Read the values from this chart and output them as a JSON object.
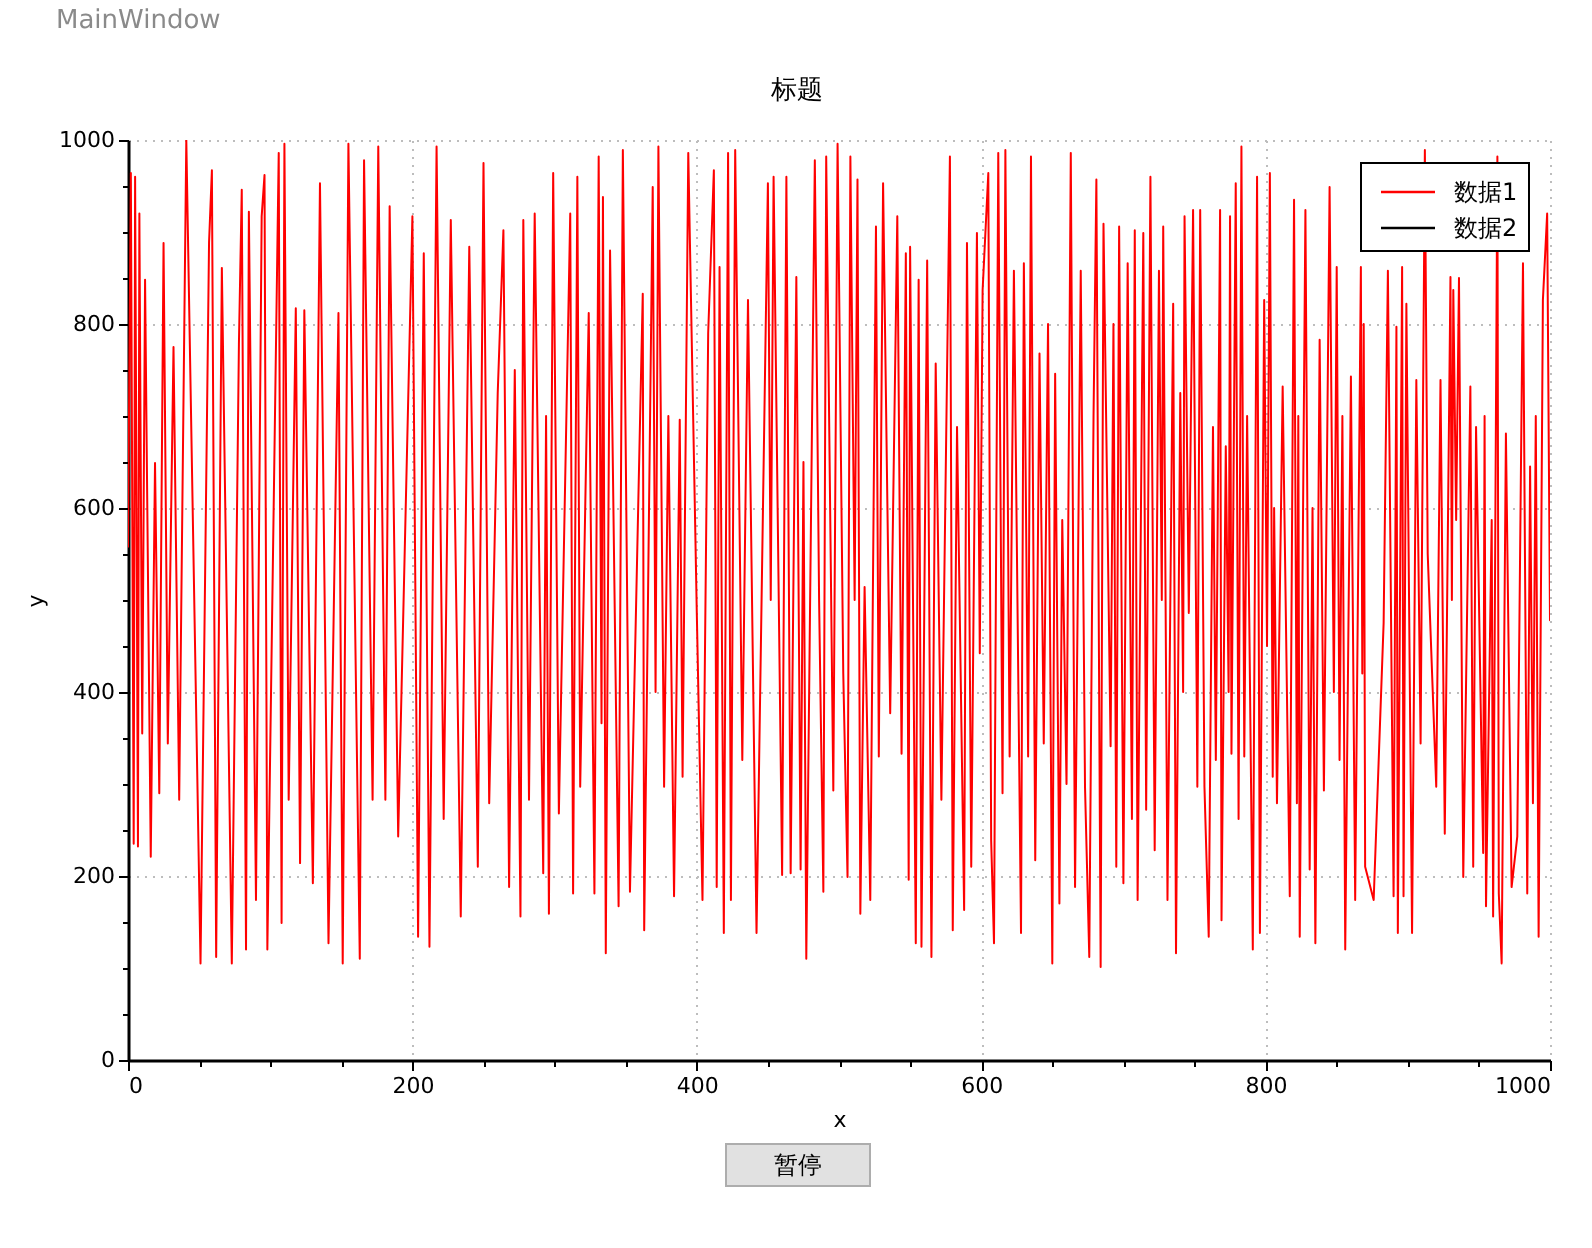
{
  "chart_data": {
    "type": "line",
    "title": "标题",
    "xlabel": "x",
    "ylabel": "y",
    "annotations": [
      "MainWindow",
      "暂停"
    ],
    "xlim": [
      0,
      1000
    ],
    "ylim": [
      0,
      1000
    ],
    "xticks": [
      0,
      {
        "value": 50,
        "label": null
      },
      {
        "value": 100,
        "label": null
      },
      {
        "value": 150,
        "label": null
      },
      200,
      {
        "value": 250,
        "label": null
      },
      {
        "value": 300,
        "label": null
      },
      {
        "value": 350,
        "label": null
      },
      400,
      {
        "value": 450,
        "label": null
      },
      {
        "value": 500,
        "label": null
      },
      {
        "value": 550,
        "label": null
      },
      600,
      {
        "value": 650,
        "label": null
      },
      {
        "value": 700,
        "label": null
      },
      {
        "value": 750,
        "label": null
      },
      800,
      {
        "value": 850,
        "label": null
      },
      {
        "value": 900,
        "label": null
      },
      {
        "value": 950,
        "label": null
      },
      1000
    ],
    "yticks": [
      0,
      {
        "value": 50,
        "label": null
      },
      {
        "value": 100,
        "label": null
      },
      {
        "value": 150,
        "label": null
      },
      200,
      {
        "value": 250,
        "label": null
      },
      {
        "value": 300,
        "label": null
      },
      {
        "value": 350,
        "label": null
      },
      400,
      {
        "value": 450,
        "label": null
      },
      {
        "value": 500,
        "label": null
      },
      {
        "value": 550,
        "label": null
      },
      600,
      {
        "value": 650,
        "label": null
      },
      {
        "value": 700,
        "label": null
      },
      {
        "value": 750,
        "label": null
      },
      800,
      {
        "value": 850,
        "label": null
      },
      {
        "value": 900,
        "label": null
      },
      {
        "value": 950,
        "label": null
      },
      1000
    ],
    "grid": true,
    "legend": "top right",
    "series": [
      {
        "name": "数据1",
        "color": "#ff0000",
        "x": [
          0,
          2,
          4,
          5,
          7,
          8,
          10,
          12,
          16,
          19,
          22,
          25,
          28,
          32,
          36,
          41,
          51,
          57,
          59,
          62,
          66,
          73,
          78,
          80,
          83,
          85,
          90,
          94,
          96,
          98,
          106,
          108,
          110,
          113,
          118,
          121,
          124,
          130,
          135,
          141,
          148,
          151,
          155,
          163,
          166,
          172,
          176,
          181,
          184,
          190,
          200,
          204,
          208,
          212,
          217,
          222,
          227,
          234,
          240,
          246,
          250,
          254,
          260,
          264,
          268,
          272,
          276,
          278,
          282,
          286,
          292,
          294,
          296,
          299,
          303,
          311,
          313,
          316,
          318,
          324,
          328,
          331,
          333,
          334,
          336,
          339,
          345,
          348,
          353,
          362,
          363,
          369,
          371,
          373,
          377,
          380,
          384,
          388,
          390,
          394,
          400,
          404,
          408,
          412,
          414,
          416,
          419,
          422,
          424,
          427,
          432,
          436,
          442,
          450,
          452,
          454,
          460,
          463,
          466,
          470,
          473,
          475,
          477,
          483,
          486,
          489,
          491,
          496,
          499,
          503,
          506,
          508,
          511,
          513,
          515,
          518,
          522,
          526,
          528,
          531,
          536,
          541,
          544,
          547,
          549,
          550,
          554,
          556,
          558,
          562,
          565,
          568,
          572,
          578,
          580,
          583,
          588,
          590,
          593,
          597,
          599,
          601,
          605,
          607,
          609,
          612,
          615,
          617,
          620,
          623,
          628,
          630,
          633,
          635,
          638,
          641,
          644,
          647,
          650,
          652,
          655,
          657,
          660,
          663,
          666,
          670,
          673,
          676,
          679,
          681,
          684,
          686,
          691,
          693,
          695,
          697,
          700,
          703,
          706,
          708,
          710,
          714,
          716,
          719,
          722,
          725,
          727,
          728,
          731,
          735,
          737,
          740,
          742,
          743,
          746,
          749,
          752,
          754,
          757,
          760,
          763,
          765,
          768,
          769,
          772,
          774,
          775,
          776,
          779,
          781,
          783,
          785,
          787,
          791,
          794,
          796,
          799,
          801,
          803,
          805,
          806,
          808,
          812,
          817,
          820,
          822,
          823,
          824,
          828,
          831,
          833,
          835,
          838,
          841,
          845,
          848,
          850,
          852,
          854,
          856,
          860,
          863,
          867,
          868,
          869,
          870,
          874,
          876,
          880,
          883,
          886,
          890,
          892,
          893,
          896,
          897,
          899,
          903,
          906,
          909,
          912,
          914,
          917,
          920,
          923,
          926,
          930,
          931,
          932,
          934,
          936,
          939,
          944,
          946,
          948,
          953,
          954,
          955,
          959,
          960,
          963,
          964,
          966,
          969,
          973,
          975,
          977,
          981,
          984,
          986,
          988,
          990,
          992,
          995,
          998,
          1000
        ],
        "values": [
          558,
          964,
          235,
          960,
          232,
          920,
          355,
          848,
          221,
          649,
          290,
          888,
          344,
          775,
          283,
          1000,
          105,
          889,
          967,
          112,
          861,
          105,
          778,
          946,
          120,
          922,
          174,
          917,
          962,
          120,
          986,
          149,
          996,
          283,
          817,
          214,
          815,
          192,
          953,
          127,
          812,
          105,
          996,
          110,
          978,
          283,
          993,
          283,
          928,
          243,
          917,
          134,
          877,
          123,
          993,
          262,
          913,
          156,
          884,
          210,
          975,
          279,
          725,
          902,
          188,
          750,
          156,
          913,
          283,
          920,
          203,
          700,
          159,
          964,
          268,
          920,
          181,
          960,
          297,
          812,
          181,
          982,
          366,
          938,
          116,
          880,
          167,
          989,
          183,
          833,
          141,
          949,
          400,
          993,
          297,
          700,
          178,
          696,
          308,
          986,
          486,
          174,
          790,
          967,
          188,
          862,
          138,
          986,
          174,
          989,
          326,
          826,
          138,
          953,
          500,
          960,
          201,
          960,
          203,
          851,
          207,
          650,
          110,
          978,
          500,
          183,
          982,
          293,
          996,
          420,
          199,
          982,
          500,
          957,
          159,
          514,
          174,
          906,
          330,
          953,
          377,
          917,
          333,
          877,
          196,
          884,
          127,
          848,
          123,
          869,
          112,
          757,
          283,
          982,
          141,
          688,
          163,
          888,
          210,
          899,
          442,
          837,
          964,
          239,
          127,
          986,
          290,
          989,
          330,
          858,
          138,
          866,
          330,
          982,
          217,
          768,
          344,
          800,
          105,
          746,
          170,
          587,
          300,
          986,
          188,
          858,
          297,
          112,
          700,
          957,
          101,
          909,
          341,
          800,
          210,
          906,
          192,
          866,
          262,
          902,
          174,
          899,
          272,
          960,
          228,
          858,
          500,
          906,
          174,
          822,
          116,
          725,
          400,
          917,
          486,
          924,
          297,
          924,
          297,
          134,
          688,
          326,
          924,
          152,
          667,
          400,
          917,
          333,
          953,
          262,
          993,
          330,
          700,
          120,
          960,
          138,
          826,
          450,
          964,
          308,
          600,
          279,
          732,
          178,
          935,
          279,
          700,
          134,
          924,
          207,
          600,
          127,
          783,
          293,
          949,
          400,
          862,
          326,
          700,
          120,
          743,
          174,
          862,
          420,
          800,
          210,
          null,
          174,
          null,
          475,
          858,
          178,
          797,
          138,
          862,
          178,
          822,
          138,
          739,
          344,
          989,
          550,
          null,
          297,
          739,
          246,
          851,
          500,
          837,
          587,
          850,
          199,
          732,
          210,
          688,
          225,
          700,
          167,
          587,
          156,
          982,
          181,
          105,
          681,
          188,
          null,
          243,
          866,
          181,
          645,
          279,
          700,
          134,
          826,
          920,
          478
        ]
      },
      {
        "name": "数据2",
        "color": "#000000"
      }
    ]
  }
}
